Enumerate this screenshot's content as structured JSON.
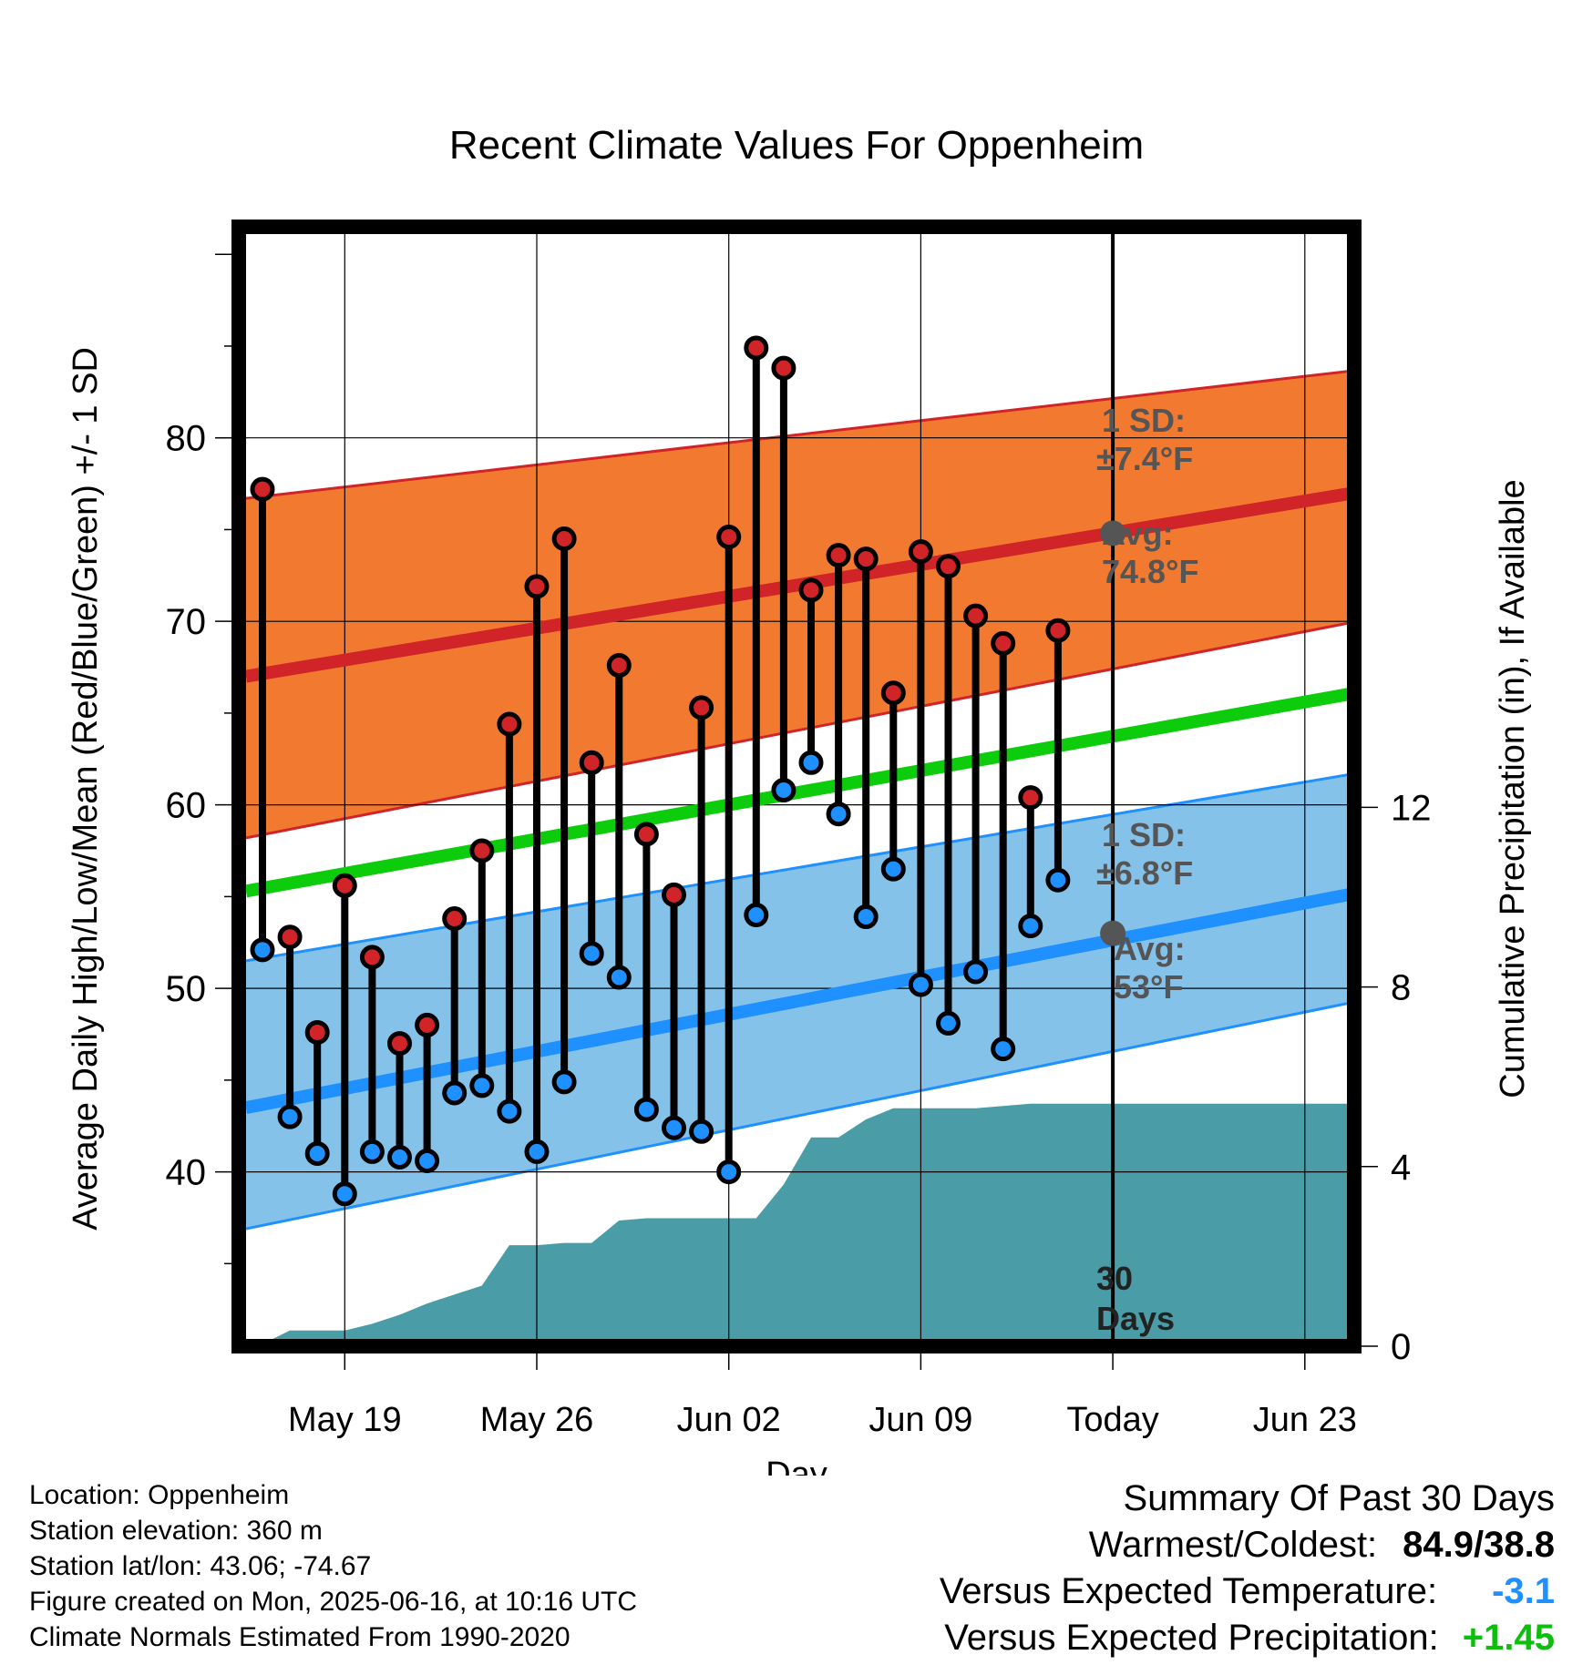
{
  "chart_data": {
    "type": "line",
    "title": "Recent Climate Values For Oppenheim",
    "xlabel": "Day",
    "ylabel": "Average Daily High/Low/Mean (Red/Blue/Green) +/- 1 SD",
    "y2label": "Cumulative Precipitation (in), If Available",
    "x_tick_labels": [
      "May 19",
      "May 26",
      "Jun 02",
      "Jun 09",
      "Today",
      "Jun 23"
    ],
    "x_tick_days": [
      3,
      10,
      17,
      24,
      31,
      38
    ],
    "today_day": 31,
    "x_range_days": [
      0,
      40.6
    ],
    "ylim": [
      30.5,
      91.5
    ],
    "y_ticks": [
      40,
      50,
      60,
      70,
      80
    ],
    "y2lim": [
      0,
      24
    ],
    "y2_ticks": [
      0,
      4,
      8,
      12
    ],
    "grid": true,
    "observations_start_day": 0,
    "observed_high": [
      77.2,
      52.8,
      47.6,
      55.6,
      51.7,
      47.0,
      48.0,
      53.8,
      57.5,
      64.4,
      71.9,
      74.5,
      62.3,
      67.6,
      58.4,
      55.1,
      65.3,
      74.6,
      84.9,
      83.8,
      71.7,
      73.6,
      73.4,
      66.1,
      73.8,
      73.0,
      70.3,
      68.8,
      60.4,
      69.5
    ],
    "observed_low": [
      52.1,
      43.0,
      41.0,
      38.8,
      41.1,
      40.8,
      40.6,
      44.3,
      44.7,
      43.3,
      41.1,
      44.9,
      51.9,
      50.6,
      43.4,
      42.4,
      42.2,
      40.0,
      54.0,
      60.8,
      62.3,
      59.5,
      53.9,
      56.5,
      50.2,
      48.1,
      50.9,
      46.7,
      53.4,
      55.9
    ],
    "normal_days": [
      -0.6,
      40.6
    ],
    "normal_high_mean": [
      67.0,
      77.2
    ],
    "normal_high_upper": [
      76.7,
      83.8
    ],
    "normal_high_lower": [
      58.2,
      70.2
    ],
    "normal_mean": [
      55.3,
      66.3
    ],
    "normal_low_mean": [
      43.5,
      55.4
    ],
    "normal_low_upper": [
      51.5,
      61.9
    ],
    "normal_low_lower": [
      36.9,
      49.5
    ],
    "precip_days": [
      -0.6,
      0,
      1,
      2,
      3,
      4,
      5,
      6,
      7,
      8,
      9,
      10,
      11,
      12,
      13,
      14,
      15,
      16,
      17,
      18,
      19,
      20,
      21,
      22,
      23,
      24,
      25,
      26,
      27,
      28,
      29,
      40.6
    ],
    "cumulative_precip": [
      0,
      0.05,
      0.35,
      0.35,
      0.35,
      0.5,
      0.7,
      0.95,
      1.15,
      1.35,
      2.25,
      2.25,
      2.3,
      2.3,
      2.8,
      2.85,
      2.85,
      2.85,
      2.85,
      2.85,
      3.6,
      4.65,
      4.65,
      5.05,
      5.3,
      5.3,
      5.3,
      5.3,
      5.35,
      5.4,
      5.4,
      5.4
    ],
    "annotations": {
      "high_sd": [
        "1 SD:",
        "±7.4°F"
      ],
      "high_avg": [
        "Avg:",
        "74.8°F"
      ],
      "high_avg_value": 74.8,
      "low_sd": [
        "1 SD:",
        "±6.8°F"
      ],
      "low_avg": [
        "Avg:",
        "53°F"
      ],
      "low_avg_value": 53.0,
      "days": [
        "30",
        "Days"
      ]
    },
    "colors": {
      "high_band": "#f27a30",
      "high_line": "#d02428",
      "mean_line": "#0ccc0c",
      "low_band": "#85c2ea",
      "low_line": "#1e90ff",
      "precip": "#4a9ca6",
      "high_point": "#d02428",
      "low_point": "#1e90ff",
      "annotation": "#555555"
    }
  },
  "info": {
    "location": "Location: Oppenheim",
    "elevation": "Station elevation: 360 m",
    "latlon": "Station lat/lon: 43.06; -74.67",
    "created": "Figure created on Mon, 2025-06-16, at 10:16 UTC",
    "normals": "Climate Normals Estimated From 1990-2020"
  },
  "summary": {
    "title": "Summary Of Past 30 Days",
    "warm_cold_label": "Warmest/Coldest:",
    "warm_cold_value": "84.9/38.8",
    "temp_label": "Versus Expected Temperature:",
    "temp_value": "-3.1",
    "temp_color": "#1e90ff",
    "precip_label": "Versus Expected Precipitation:",
    "precip_value": "+1.45",
    "precip_color": "#0cbf0c"
  }
}
